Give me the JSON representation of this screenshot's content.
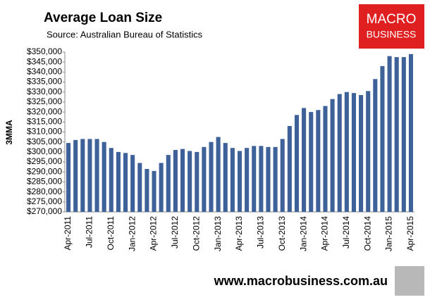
{
  "chart_data": {
    "type": "bar",
    "title": "Average Loan Size",
    "subtitle": "Source: Australian Bureau of Statistics",
    "y_label": "3MMA",
    "logo": [
      "MACRO",
      "BUSINESS"
    ],
    "footer": "www.macrobusiness.com.au",
    "color": "#3d6198",
    "categories": [
      "Apr-2011",
      null,
      null,
      "Jul-2011",
      null,
      null,
      "Oct-2011",
      null,
      null,
      "Jan-2012",
      null,
      null,
      "Apr-2012",
      null,
      null,
      "Jul-2012",
      null,
      null,
      "Oct-2012",
      null,
      null,
      "Jan-2013",
      null,
      null,
      "Apr-2013",
      null,
      null,
      "Jul-2013",
      null,
      null,
      "Oct-2013",
      null,
      null,
      "Jan-2014",
      null,
      null,
      "Apr-2014",
      null,
      null,
      "Jul-2014",
      null,
      null,
      "Oct-2014",
      null,
      null,
      "Jan-2015",
      null,
      null,
      "Apr-2015"
    ],
    "values": [
      304500,
      306000,
      306500,
      306500,
      306500,
      305000,
      302000,
      300000,
      299500,
      298500,
      294500,
      291500,
      290500,
      294500,
      298500,
      301000,
      301500,
      300500,
      300000,
      302500,
      305000,
      307500,
      304500,
      302000,
      300500,
      302000,
      303000,
      303000,
      302500,
      302500,
      306500,
      313000,
      318500,
      322000,
      320000,
      321000,
      323000,
      326500,
      329000,
      330000,
      329500,
      328500,
      330500,
      336500,
      343000,
      348000,
      347500,
      347500,
      349000
    ],
    "ylim": [
      270000,
      350000
    ],
    "yticks": [
      {
        "value": 270000,
        "label": "$270,000"
      },
      {
        "value": 275000,
        "label": "$275,000"
      },
      {
        "value": 280000,
        "label": "$280,000"
      },
      {
        "value": 285000,
        "label": "$285,000"
      },
      {
        "value": 290000,
        "label": "$290,000"
      },
      {
        "value": 295000,
        "label": "$295,000"
      },
      {
        "value": 300000,
        "label": "$300,000"
      },
      {
        "value": 305000,
        "label": "$305,000"
      },
      {
        "value": 310000,
        "label": "$310,000"
      },
      {
        "value": 315000,
        "label": "$315,000"
      },
      {
        "value": 320000,
        "label": "$320,000"
      },
      {
        "value": 325000,
        "label": "$325,000"
      },
      {
        "value": 330000,
        "label": "$330,000"
      },
      {
        "value": 335000,
        "label": "$335,000"
      },
      {
        "value": 340000,
        "label": "$340,000"
      },
      {
        "value": 345000,
        "label": "$345,000"
      },
      {
        "value": 350000,
        "label": "$350,000"
      }
    ],
    "grid": false
  }
}
